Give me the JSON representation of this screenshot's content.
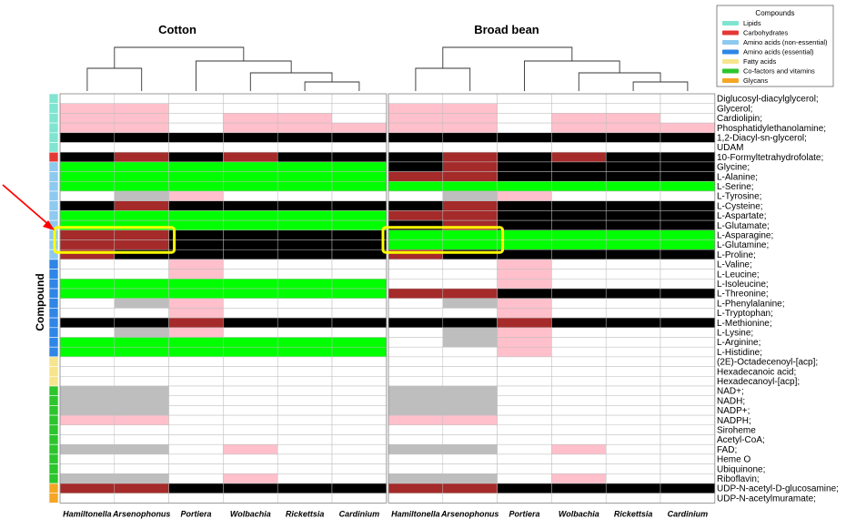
{
  "chart_data": {
    "type": "heatmap",
    "ylabel": "Compound",
    "panels": [
      {
        "title": "Cotton",
        "columns": [
          "Hamiltonella",
          "Arsenophonus",
          "Portiera",
          "Wolbachia",
          "Rickettsia",
          "Cardinium"
        ]
      },
      {
        "title": "Broad bean",
        "columns": [
          "Hamiltonella",
          "Arsenophonus",
          "Portiera",
          "Wolbachia",
          "Rickettsia",
          "Cardinium"
        ]
      }
    ],
    "legend": {
      "title": "Compounds",
      "items": [
        {
          "label": "Lipids",
          "color": "#7fe5d0"
        },
        {
          "label": "Carbohydrates",
          "color": "#e53935"
        },
        {
          "label": "Amino acids (non-essential)",
          "color": "#8ec9ef"
        },
        {
          "label": "Amino acids (essential)",
          "color": "#2f86e6"
        },
        {
          "label": "Fatty acids",
          "color": "#f6e58d"
        },
        {
          "label": "Co-factors and vitamins",
          "color": "#2cc62c"
        },
        {
          "label": "Glycans",
          "color": "#f5a623"
        }
      ]
    },
    "cell_colors": {
      "W": "#ffffff",
      "P": "#ffc0cb",
      "R": "#a52a2a",
      "K": "#000000",
      "G": "#00ff00",
      "Y": "#bebebe"
    },
    "rows": [
      {
        "label": "Diglucosyl-diacylglycerol;",
        "group": 0,
        "cotton": "WWWWWW",
        "broad": "WWWWWW"
      },
      {
        "label": "Glycerol;",
        "group": 0,
        "cotton": "PPWWWW",
        "broad": "PPWWWW"
      },
      {
        "label": "Cardiolipin;",
        "group": 0,
        "cotton": "PPWPPW",
        "broad": "PPWPPW"
      },
      {
        "label": "Phosphatidylethanolamine;",
        "group": 0,
        "cotton": "PPWPPP",
        "broad": "PPWPPP"
      },
      {
        "label": "1,2-Diacyl-sn-glycerol;",
        "group": 0,
        "cotton": "KKKKKK",
        "broad": "KKKKKK"
      },
      {
        "label": "UDAM",
        "group": 0,
        "cotton": "WWWWWW",
        "broad": "WWWWWW"
      },
      {
        "label": "10-Formyltetrahydrofolate;",
        "group": 1,
        "cotton": "KRKRKK",
        "broad": "KRKRKK"
      },
      {
        "label": "Glycine;",
        "group": 2,
        "cotton": "GGGGGG",
        "broad": "KRKKKK"
      },
      {
        "label": "L-Alanine;",
        "group": 2,
        "cotton": "GGGGGG",
        "broad": "RRKKKK"
      },
      {
        "label": "L-Serine;",
        "group": 2,
        "cotton": "GGGGGG",
        "broad": "GGGGGG"
      },
      {
        "label": "L-Tyrosine;",
        "group": 2,
        "cotton": "WYPWWW",
        "broad": "WYPWWW"
      },
      {
        "label": "L-Cysteine;",
        "group": 2,
        "cotton": "KRKKKK",
        "broad": "KRKKKK"
      },
      {
        "label": "L-Aspartate;",
        "group": 2,
        "cotton": "GGGGGG",
        "broad": "RRKKKK"
      },
      {
        "label": "L-Glutamate;",
        "group": 2,
        "cotton": "GGGGGG",
        "broad": "KRKKKK"
      },
      {
        "label": "L-Asparagine;",
        "group": 2,
        "cotton": "RRKKKK",
        "broad": "GGGGGG"
      },
      {
        "label": "L-Glutamine;",
        "group": 2,
        "cotton": "RRKKKK",
        "broad": "GGGGGG"
      },
      {
        "label": "L-Proline;",
        "group": 2,
        "cotton": "RKKKKK",
        "broad": "RKKKKK"
      },
      {
        "label": "L-Valine;",
        "group": 3,
        "cotton": "WWPWWW",
        "broad": "WWPWWW"
      },
      {
        "label": "L-Leucine;",
        "group": 3,
        "cotton": "WWPWWW",
        "broad": "WWPWWW"
      },
      {
        "label": "L-Isoleucine;",
        "group": 3,
        "cotton": "GGGGGG",
        "broad": "WWPWWW"
      },
      {
        "label": "L-Threonine;",
        "group": 3,
        "cotton": "GGGGGG",
        "broad": "RRKKKK"
      },
      {
        "label": "L-Phenylalanine;",
        "group": 3,
        "cotton": "WYPWWW",
        "broad": "WYPWWW"
      },
      {
        "label": "L-Tryptophan;",
        "group": 3,
        "cotton": "WWPWWW",
        "broad": "WWPWWW"
      },
      {
        "label": "L-Methionine;",
        "group": 3,
        "cotton": "KKRKKK",
        "broad": "KKRKKK"
      },
      {
        "label": "L-Lysine;",
        "group": 3,
        "cotton": "WYPWWW",
        "broad": "WYPWWW"
      },
      {
        "label": "L-Arginine;",
        "group": 3,
        "cotton": "GGGGGG",
        "broad": "WYPWWW"
      },
      {
        "label": "L-Histidine;",
        "group": 3,
        "cotton": "GGGGGG",
        "broad": "WWPWWW"
      },
      {
        "label": "(2E)-Octadecenoyl-[acp];",
        "group": 4,
        "cotton": "WWWWWW",
        "broad": "WWWWWW"
      },
      {
        "label": "Hexadecanoic acid;",
        "group": 4,
        "cotton": "WWWWWW",
        "broad": "WWWWWW"
      },
      {
        "label": "Hexadecanoyl-[acp];",
        "group": 4,
        "cotton": "WWWWWW",
        "broad": "WWWWWW"
      },
      {
        "label": "NAD+;",
        "group": 5,
        "cotton": "YYWWWW",
        "broad": "YYWWWW"
      },
      {
        "label": "NADH;",
        "group": 5,
        "cotton": "YYWWWW",
        "broad": "YYWWWW"
      },
      {
        "label": "NADP+;",
        "group": 5,
        "cotton": "YYWWWW",
        "broad": "YYWWWW"
      },
      {
        "label": "NADPH;",
        "group": 5,
        "cotton": "PPWWWW",
        "broad": "PPWWWW"
      },
      {
        "label": "Siroheme",
        "group": 5,
        "cotton": "WWWWWW",
        "broad": "WWWWWW"
      },
      {
        "label": "Acetyl-CoA;",
        "group": 5,
        "cotton": "WWWWWW",
        "broad": "WWWWWW"
      },
      {
        "label": "FAD;",
        "group": 5,
        "cotton": "YYWPWW",
        "broad": "YYWPWW"
      },
      {
        "label": "Heme O",
        "group": 5,
        "cotton": "WWWWWW",
        "broad": "WWWWWW"
      },
      {
        "label": "Ubiquinone;",
        "group": 5,
        "cotton": "WWWWWW",
        "broad": "WWWWWW"
      },
      {
        "label": "Riboflavin;",
        "group": 5,
        "cotton": "YYWPWW",
        "broad": "YYWPWW"
      },
      {
        "label": "UDP-N-acetyl-D-glucosamine;",
        "group": 6,
        "cotton": "RRKKKK",
        "broad": "RRKKKK"
      },
      {
        "label": "UDP-N-acetylmuramate;",
        "group": 6,
        "cotton": "WWWWWW",
        "broad": "WWWWWW"
      }
    ],
    "highlight": {
      "rows": [
        "L-Asparagine;",
        "L-Glutamine;"
      ],
      "color": "#ffff00"
    },
    "arrow_color": "#ff0000"
  }
}
